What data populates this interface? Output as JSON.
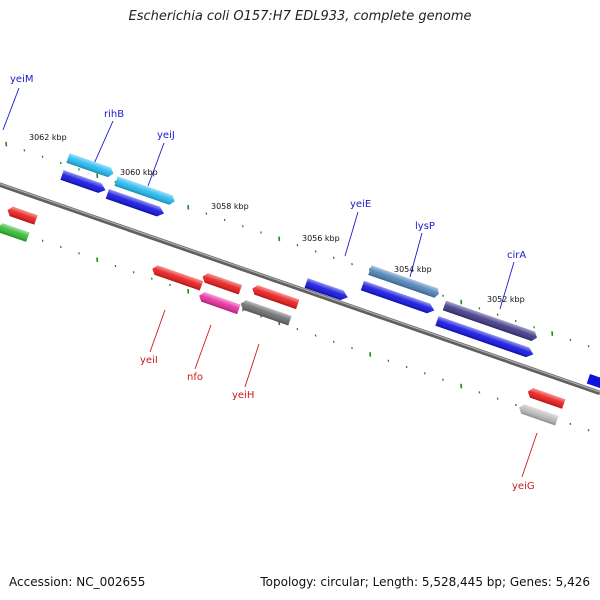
{
  "title": "Escherichia coli O157:H7 EDL933, complete genome",
  "footer": {
    "accession": "Accession: NC_002655",
    "summary": "Topology: circular; Length: 5,528,445 bp; Genes: 5,426"
  },
  "ticks": [
    "3062 kbp",
    "3060 kbp",
    "3058 kbp",
    "3056 kbp",
    "3054 kbp",
    "3052 kbp"
  ],
  "genes_top": [
    "yeiM",
    "rihB",
    "yeiJ",
    "yeiE",
    "lysP",
    "cirA"
  ],
  "genes_bottom": [
    "yeiI",
    "nfo",
    "yeiH",
    "yeiG"
  ],
  "colors": {
    "backbone": "#808080",
    "tick": "#1a8a1a",
    "label_top": "#1a1acc",
    "label_bottom": "#cc1a1a",
    "blue": "#1010e0",
    "cyan": "#20b8f0",
    "steel": "#4a7fb8",
    "indigo": "#3a3585",
    "red": "#e81818",
    "magenta": "#e62a9e",
    "gray": "#6a6a6a",
    "silver": "#b8b8b8",
    "green": "#2fb82f"
  }
}
